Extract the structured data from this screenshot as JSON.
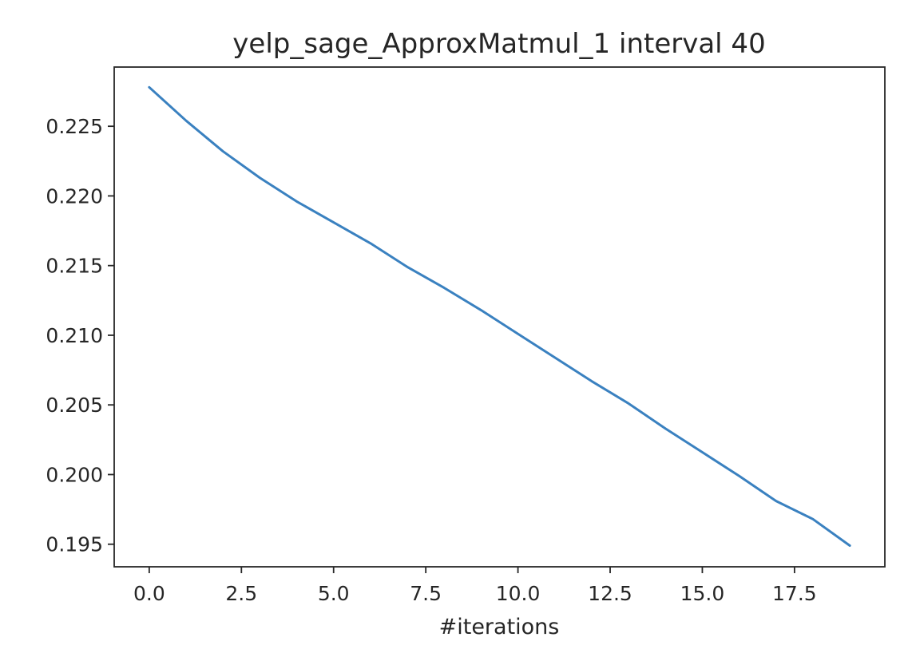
{
  "chart_data": {
    "type": "line",
    "title": "yelp_sage_ApproxMatmul_1 interval 40",
    "xlabel": "#iterations",
    "ylabel": "",
    "xlim": [
      -0.95,
      19.95
    ],
    "ylim": [
      0.19338,
      0.22925
    ],
    "xticks": [
      0.0,
      2.5,
      5.0,
      7.5,
      10.0,
      12.5,
      15.0,
      17.5
    ],
    "xtick_labels": [
      "0.0",
      "2.5",
      "5.0",
      "7.5",
      "10.0",
      "12.5",
      "15.0",
      "17.5"
    ],
    "yticks": [
      0.195,
      0.2,
      0.205,
      0.21,
      0.215,
      0.22,
      0.225
    ],
    "ytick_labels": [
      "0.195",
      "0.200",
      "0.205",
      "0.210",
      "0.215",
      "0.220",
      "0.225"
    ],
    "grid": false,
    "legend": "none",
    "series": [
      {
        "color": "#3a81c0",
        "x": [
          0,
          1,
          2,
          3,
          4,
          5,
          6,
          7,
          8,
          9,
          10,
          11,
          12,
          13,
          14,
          15,
          16,
          17,
          18,
          19
        ],
        "y": [
          0.2278,
          0.2254,
          0.2232,
          0.2213,
          0.2196,
          0.2181,
          0.2166,
          0.2149,
          0.2134,
          0.2118,
          0.2101,
          0.2084,
          0.2067,
          0.2051,
          0.2033,
          0.2016,
          0.1999,
          0.1981,
          0.1968,
          0.1949
        ]
      }
    ]
  }
}
